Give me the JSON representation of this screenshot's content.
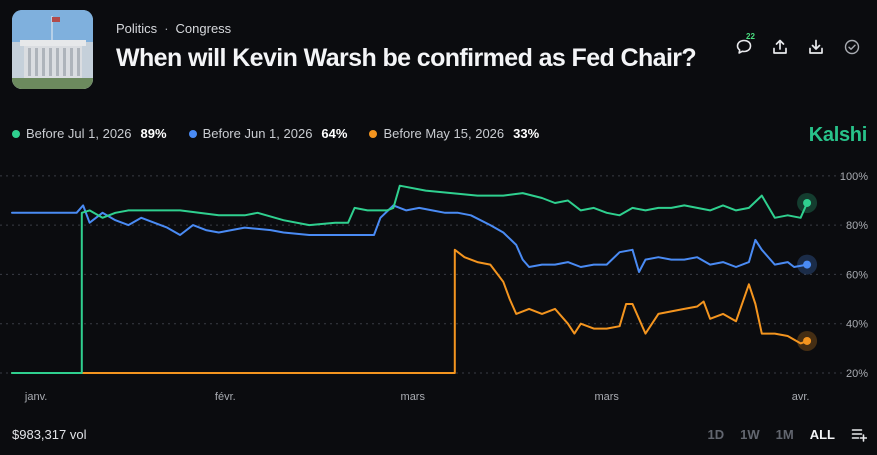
{
  "header": {
    "category": "Politics",
    "subcategory": "Congress",
    "title": "When will Kevin Warsh be confirmed as Fed Chair?",
    "comment_count": "22",
    "icons": [
      "comment-icon",
      "share-icon",
      "download-icon",
      "check-circle-icon"
    ]
  },
  "brand": "Kalshi",
  "legend": [
    {
      "label": "Before Jul 1, 2026",
      "value": "89%",
      "color": "#2fd08f"
    },
    {
      "label": "Before Jun 1, 2026",
      "value": "64%",
      "color": "#4a8bf4"
    },
    {
      "label": "Before May 15, 2026",
      "value": "33%",
      "color": "#f4951f"
    }
  ],
  "footer": {
    "volume": "$983,317 vol",
    "ranges": [
      "1D",
      "1W",
      "1M",
      "ALL"
    ],
    "active_range": "ALL"
  },
  "chart_data": {
    "type": "line",
    "x_tick_labels": [
      "janv.",
      "févr.",
      "mars",
      "mars",
      "avr."
    ],
    "x_tick_days": [
      0,
      31,
      60,
      90,
      120
    ],
    "x_domain": [
      -2,
      123
    ],
    "y_tick_labels": [
      "100%",
      "80%",
      "60%",
      "40%",
      "20%"
    ],
    "y_ticks": [
      100,
      80,
      60,
      40,
      20
    ],
    "ylim": [
      20,
      104
    ],
    "grid": true,
    "series": [
      {
        "name": "Before Jul 1, 2026",
        "color": "#2fd08f",
        "last_value": 89,
        "points": [
          [
            -2,
            20
          ],
          [
            8.8,
            20
          ],
          [
            8.8,
            85
          ],
          [
            10,
            86
          ],
          [
            12,
            83
          ],
          [
            14,
            85
          ],
          [
            16,
            86
          ],
          [
            20,
            86
          ],
          [
            24,
            86
          ],
          [
            30,
            84
          ],
          [
            34,
            84
          ],
          [
            36,
            85
          ],
          [
            40,
            82
          ],
          [
            44,
            80
          ],
          [
            48,
            81
          ],
          [
            50,
            81
          ],
          [
            51,
            87
          ],
          [
            53,
            86
          ],
          [
            56,
            86
          ],
          [
            57,
            87
          ],
          [
            58,
            96
          ],
          [
            62,
            94
          ],
          [
            66,
            93
          ],
          [
            70,
            92
          ],
          [
            74,
            92
          ],
          [
            77,
            93
          ],
          [
            80,
            91
          ],
          [
            82,
            89
          ],
          [
            84,
            90
          ],
          [
            86,
            86
          ],
          [
            88,
            87
          ],
          [
            90,
            85
          ],
          [
            92,
            84
          ],
          [
            94,
            87
          ],
          [
            96,
            86
          ],
          [
            98,
            87
          ],
          [
            100,
            87
          ],
          [
            102,
            88
          ],
          [
            106,
            86
          ],
          [
            108,
            88
          ],
          [
            110,
            86
          ],
          [
            112,
            87
          ],
          [
            114,
            92
          ],
          [
            116,
            83
          ],
          [
            118,
            84
          ],
          [
            120,
            83
          ],
          [
            121,
            89
          ]
        ]
      },
      {
        "name": "Before Jun 1, 2026",
        "color": "#4a8bf4",
        "last_value": 64,
        "points": [
          [
            -2,
            85
          ],
          [
            8,
            85
          ],
          [
            9,
            88
          ],
          [
            10,
            81
          ],
          [
            12,
            85
          ],
          [
            14,
            82
          ],
          [
            16,
            80
          ],
          [
            18,
            83
          ],
          [
            20,
            81
          ],
          [
            22,
            79
          ],
          [
            24,
            76
          ],
          [
            26,
            80
          ],
          [
            28,
            78
          ],
          [
            30,
            77
          ],
          [
            34,
            79
          ],
          [
            38,
            78
          ],
          [
            40,
            77
          ],
          [
            44,
            76
          ],
          [
            48,
            76
          ],
          [
            50,
            76
          ],
          [
            54,
            76
          ],
          [
            55,
            83
          ],
          [
            57,
            88
          ],
          [
            59,
            86
          ],
          [
            61,
            87
          ],
          [
            63,
            86
          ],
          [
            65,
            85
          ],
          [
            67,
            85
          ],
          [
            69,
            84
          ],
          [
            72,
            80
          ],
          [
            74,
            77
          ],
          [
            76,
            72
          ],
          [
            77,
            66
          ],
          [
            78,
            63
          ],
          [
            80,
            64
          ],
          [
            82,
            64
          ],
          [
            84,
            65
          ],
          [
            86,
            63
          ],
          [
            88,
            64
          ],
          [
            90,
            64
          ],
          [
            92,
            69
          ],
          [
            94,
            70
          ],
          [
            95,
            61
          ],
          [
            96,
            66
          ],
          [
            98,
            67
          ],
          [
            100,
            66
          ],
          [
            102,
            66
          ],
          [
            104,
            67
          ],
          [
            106,
            64
          ],
          [
            108,
            65
          ],
          [
            110,
            63
          ],
          [
            112,
            65
          ],
          [
            113,
            74
          ],
          [
            114,
            70
          ],
          [
            116,
            64
          ],
          [
            118,
            65
          ],
          [
            119,
            63
          ],
          [
            121,
            64
          ]
        ]
      },
      {
        "name": "Before May 15, 2026",
        "color": "#f4951f",
        "last_value": 33,
        "points": [
          [
            -2,
            20
          ],
          [
            66.5,
            20
          ],
          [
            66.5,
            70
          ],
          [
            68,
            67
          ],
          [
            70,
            65
          ],
          [
            72,
            64
          ],
          [
            74,
            57
          ],
          [
            75,
            50
          ],
          [
            76,
            44
          ],
          [
            78,
            46
          ],
          [
            80,
            44
          ],
          [
            82,
            46
          ],
          [
            84,
            40
          ],
          [
            85,
            36
          ],
          [
            86,
            40
          ],
          [
            88,
            38
          ],
          [
            90,
            38
          ],
          [
            92,
            39
          ],
          [
            93,
            48
          ],
          [
            94,
            48
          ],
          [
            95,
            42
          ],
          [
            96,
            36
          ],
          [
            98,
            44
          ],
          [
            100,
            45
          ],
          [
            102,
            46
          ],
          [
            104,
            47
          ],
          [
            105,
            49
          ],
          [
            106,
            42
          ],
          [
            108,
            44
          ],
          [
            110,
            41
          ],
          [
            112,
            56
          ],
          [
            113,
            48
          ],
          [
            114,
            36
          ],
          [
            116,
            36
          ],
          [
            118,
            35
          ],
          [
            120,
            32
          ],
          [
            121,
            33
          ]
        ]
      }
    ]
  }
}
